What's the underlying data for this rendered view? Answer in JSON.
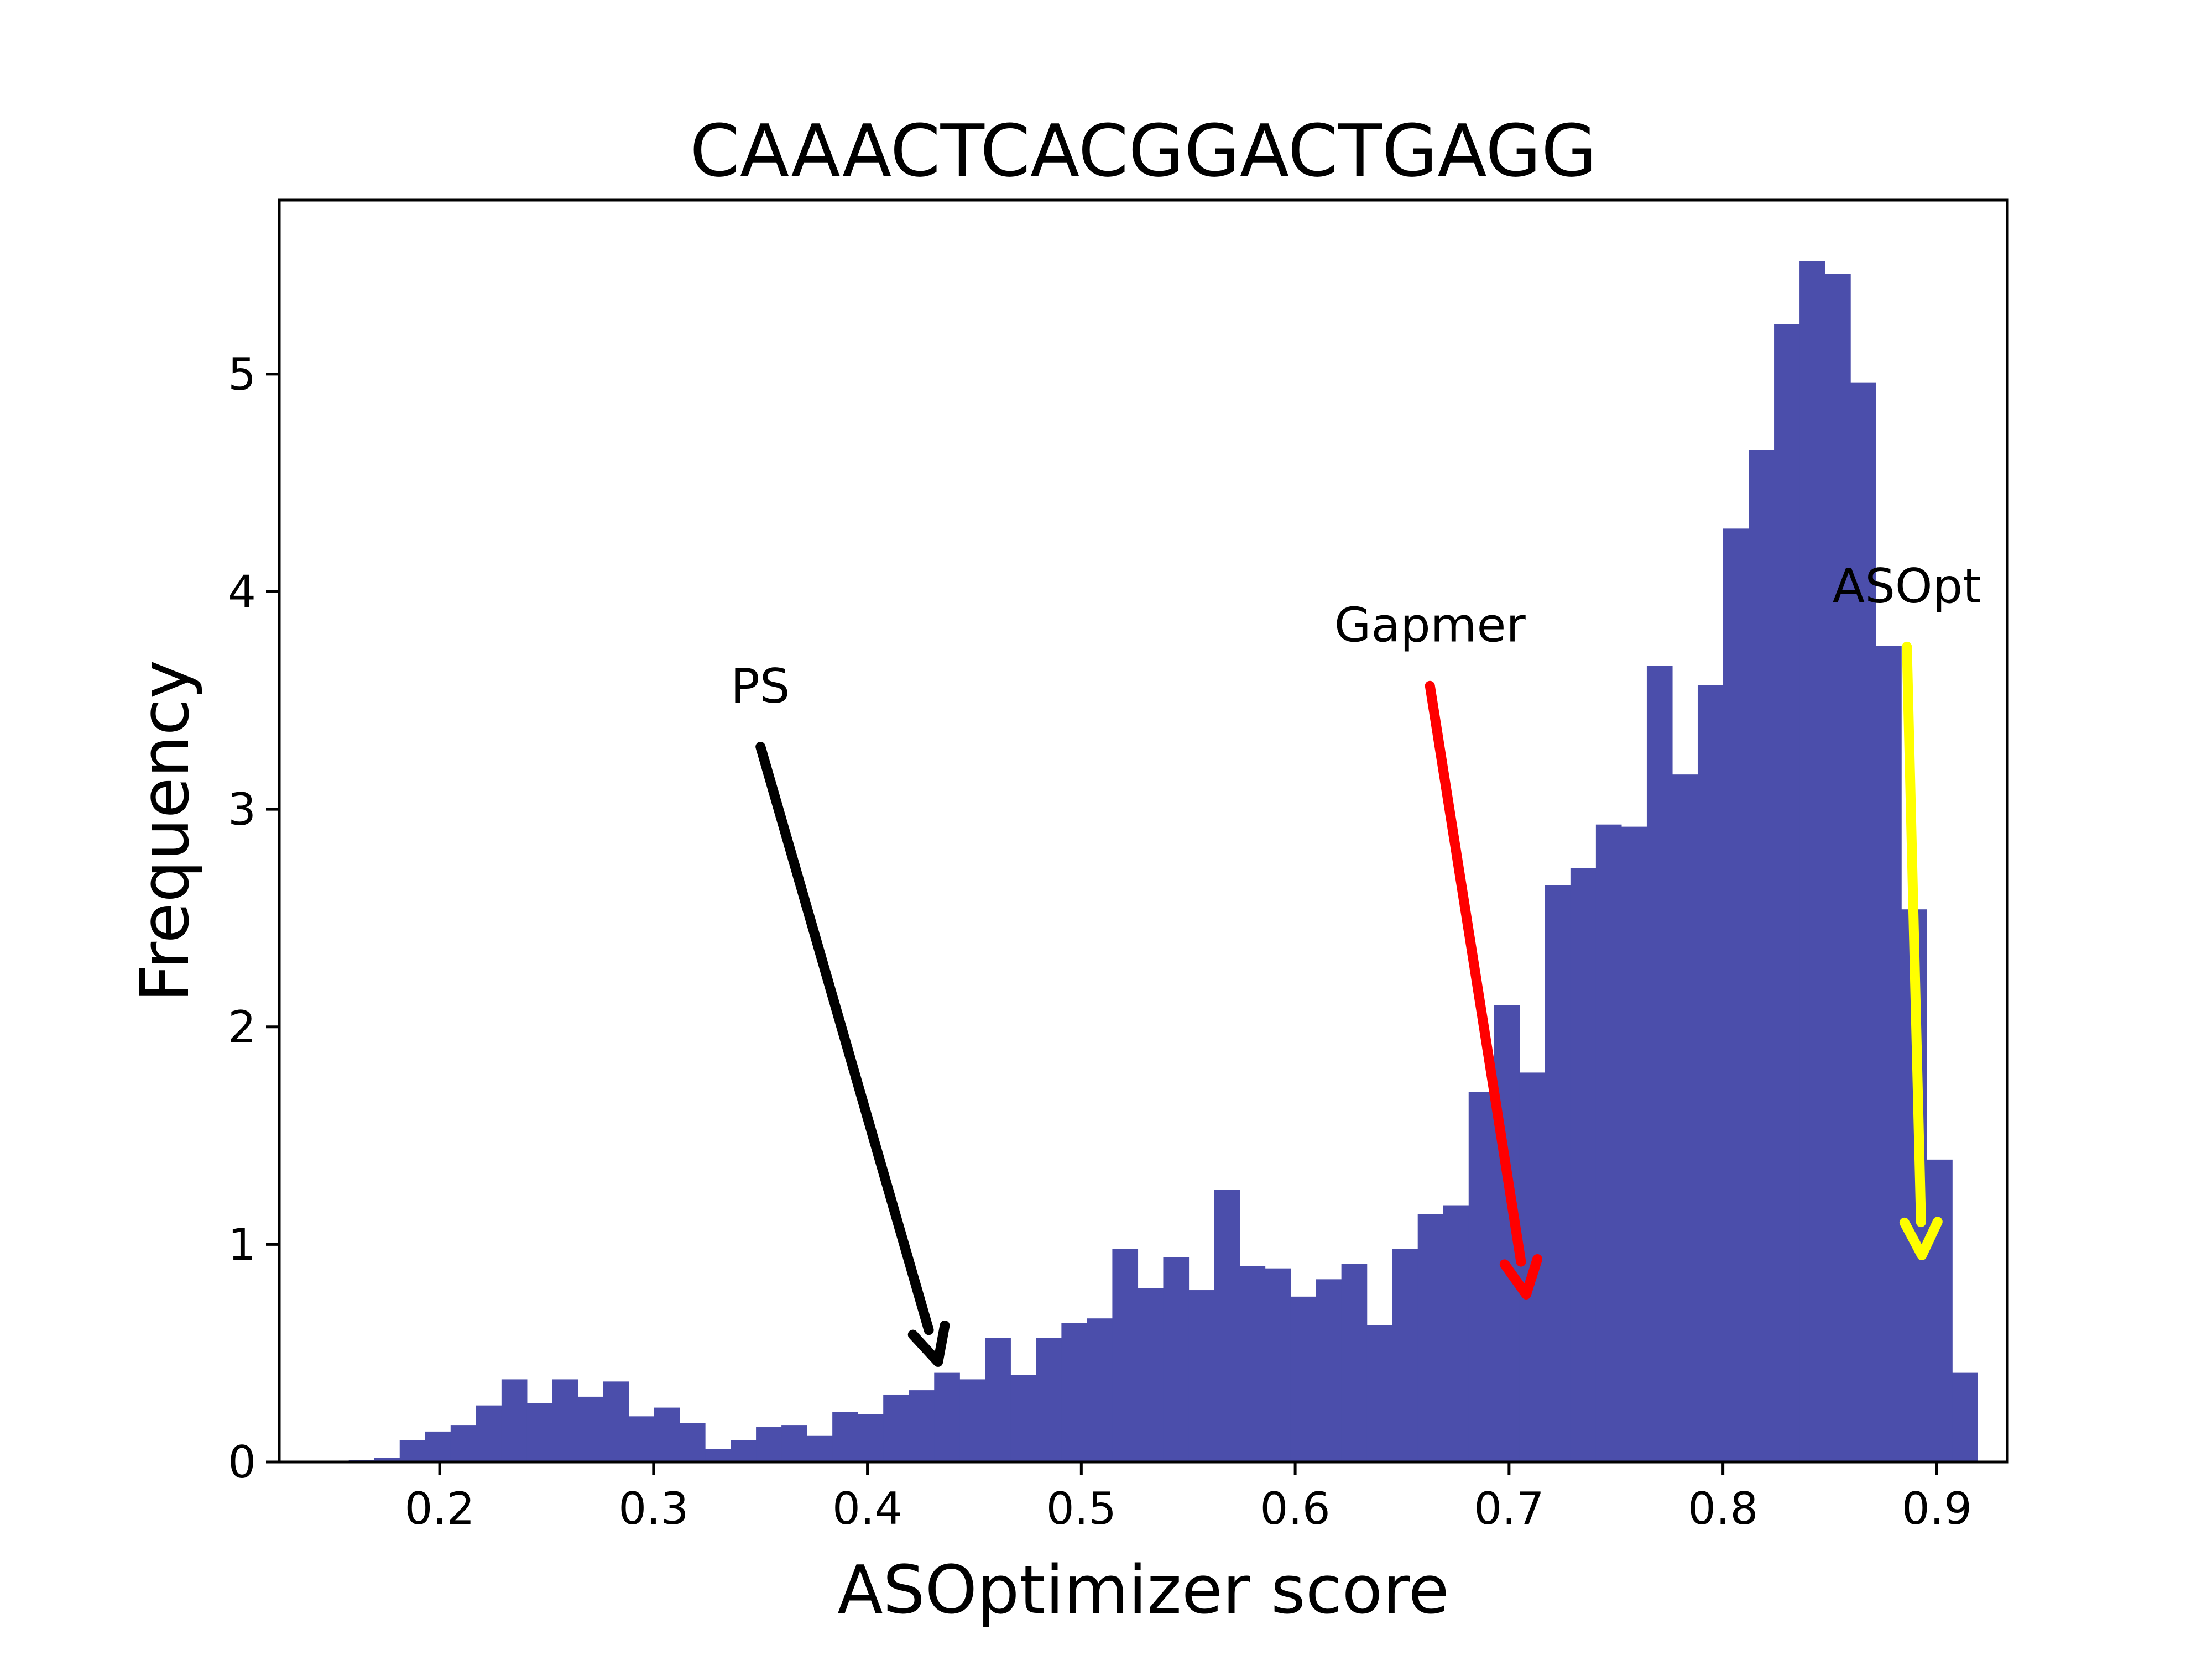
{
  "chart_data": {
    "type": "bar",
    "title": "CAAACTCACGGACTGAGG",
    "xlabel": "ASOptimizer score",
    "ylabel": "Frequency",
    "xlim": [
      0.125,
      0.933
    ],
    "ylim": [
      0,
      5.8
    ],
    "xticks": [
      "0.2",
      "0.3",
      "0.4",
      "0.5",
      "0.6",
      "0.7",
      "0.8",
      "0.9"
    ],
    "yticks": [
      "0",
      "1",
      "2",
      "3",
      "4",
      "5"
    ],
    "grid": false,
    "legend": "none",
    "bar_color": "#4b4eab",
    "bin_start": 0.1575,
    "bin_width": 0.0119,
    "values": [
      0.01,
      0.02,
      0.1,
      0.14,
      0.17,
      0.26,
      0.38,
      0.27,
      0.38,
      0.3,
      0.37,
      0.21,
      0.25,
      0.18,
      0.06,
      0.1,
      0.16,
      0.17,
      0.12,
      0.23,
      0.22,
      0.31,
      0.33,
      0.41,
      0.38,
      0.57,
      0.4,
      0.57,
      0.64,
      0.66,
      0.98,
      0.8,
      0.94,
      0.79,
      1.25,
      0.9,
      0.89,
      0.76,
      0.84,
      0.91,
      0.63,
      0.98,
      1.14,
      1.18,
      1.7,
      2.1,
      1.79,
      2.65,
      2.73,
      2.93,
      2.92,
      3.66,
      3.16,
      3.57,
      4.29,
      4.65,
      5.23,
      5.52,
      5.46,
      4.96,
      3.75,
      2.54,
      1.39,
      0.41
    ],
    "annotations": [
      {
        "text": "PS",
        "color": "#000000",
        "x": 0.433,
        "y": 0.46,
        "text_x": 0.35,
        "text_y": 3.44
      },
      {
        "text": "Gapmer",
        "color": "#ff0000",
        "x": 0.708,
        "y": 0.77,
        "text_x": 0.663,
        "text_y": 3.72
      },
      {
        "text": "ASOpt",
        "color": "#ffff00",
        "x": 0.893,
        "y": 0.95,
        "text_x": 0.886,
        "text_y": 3.9
      }
    ]
  }
}
